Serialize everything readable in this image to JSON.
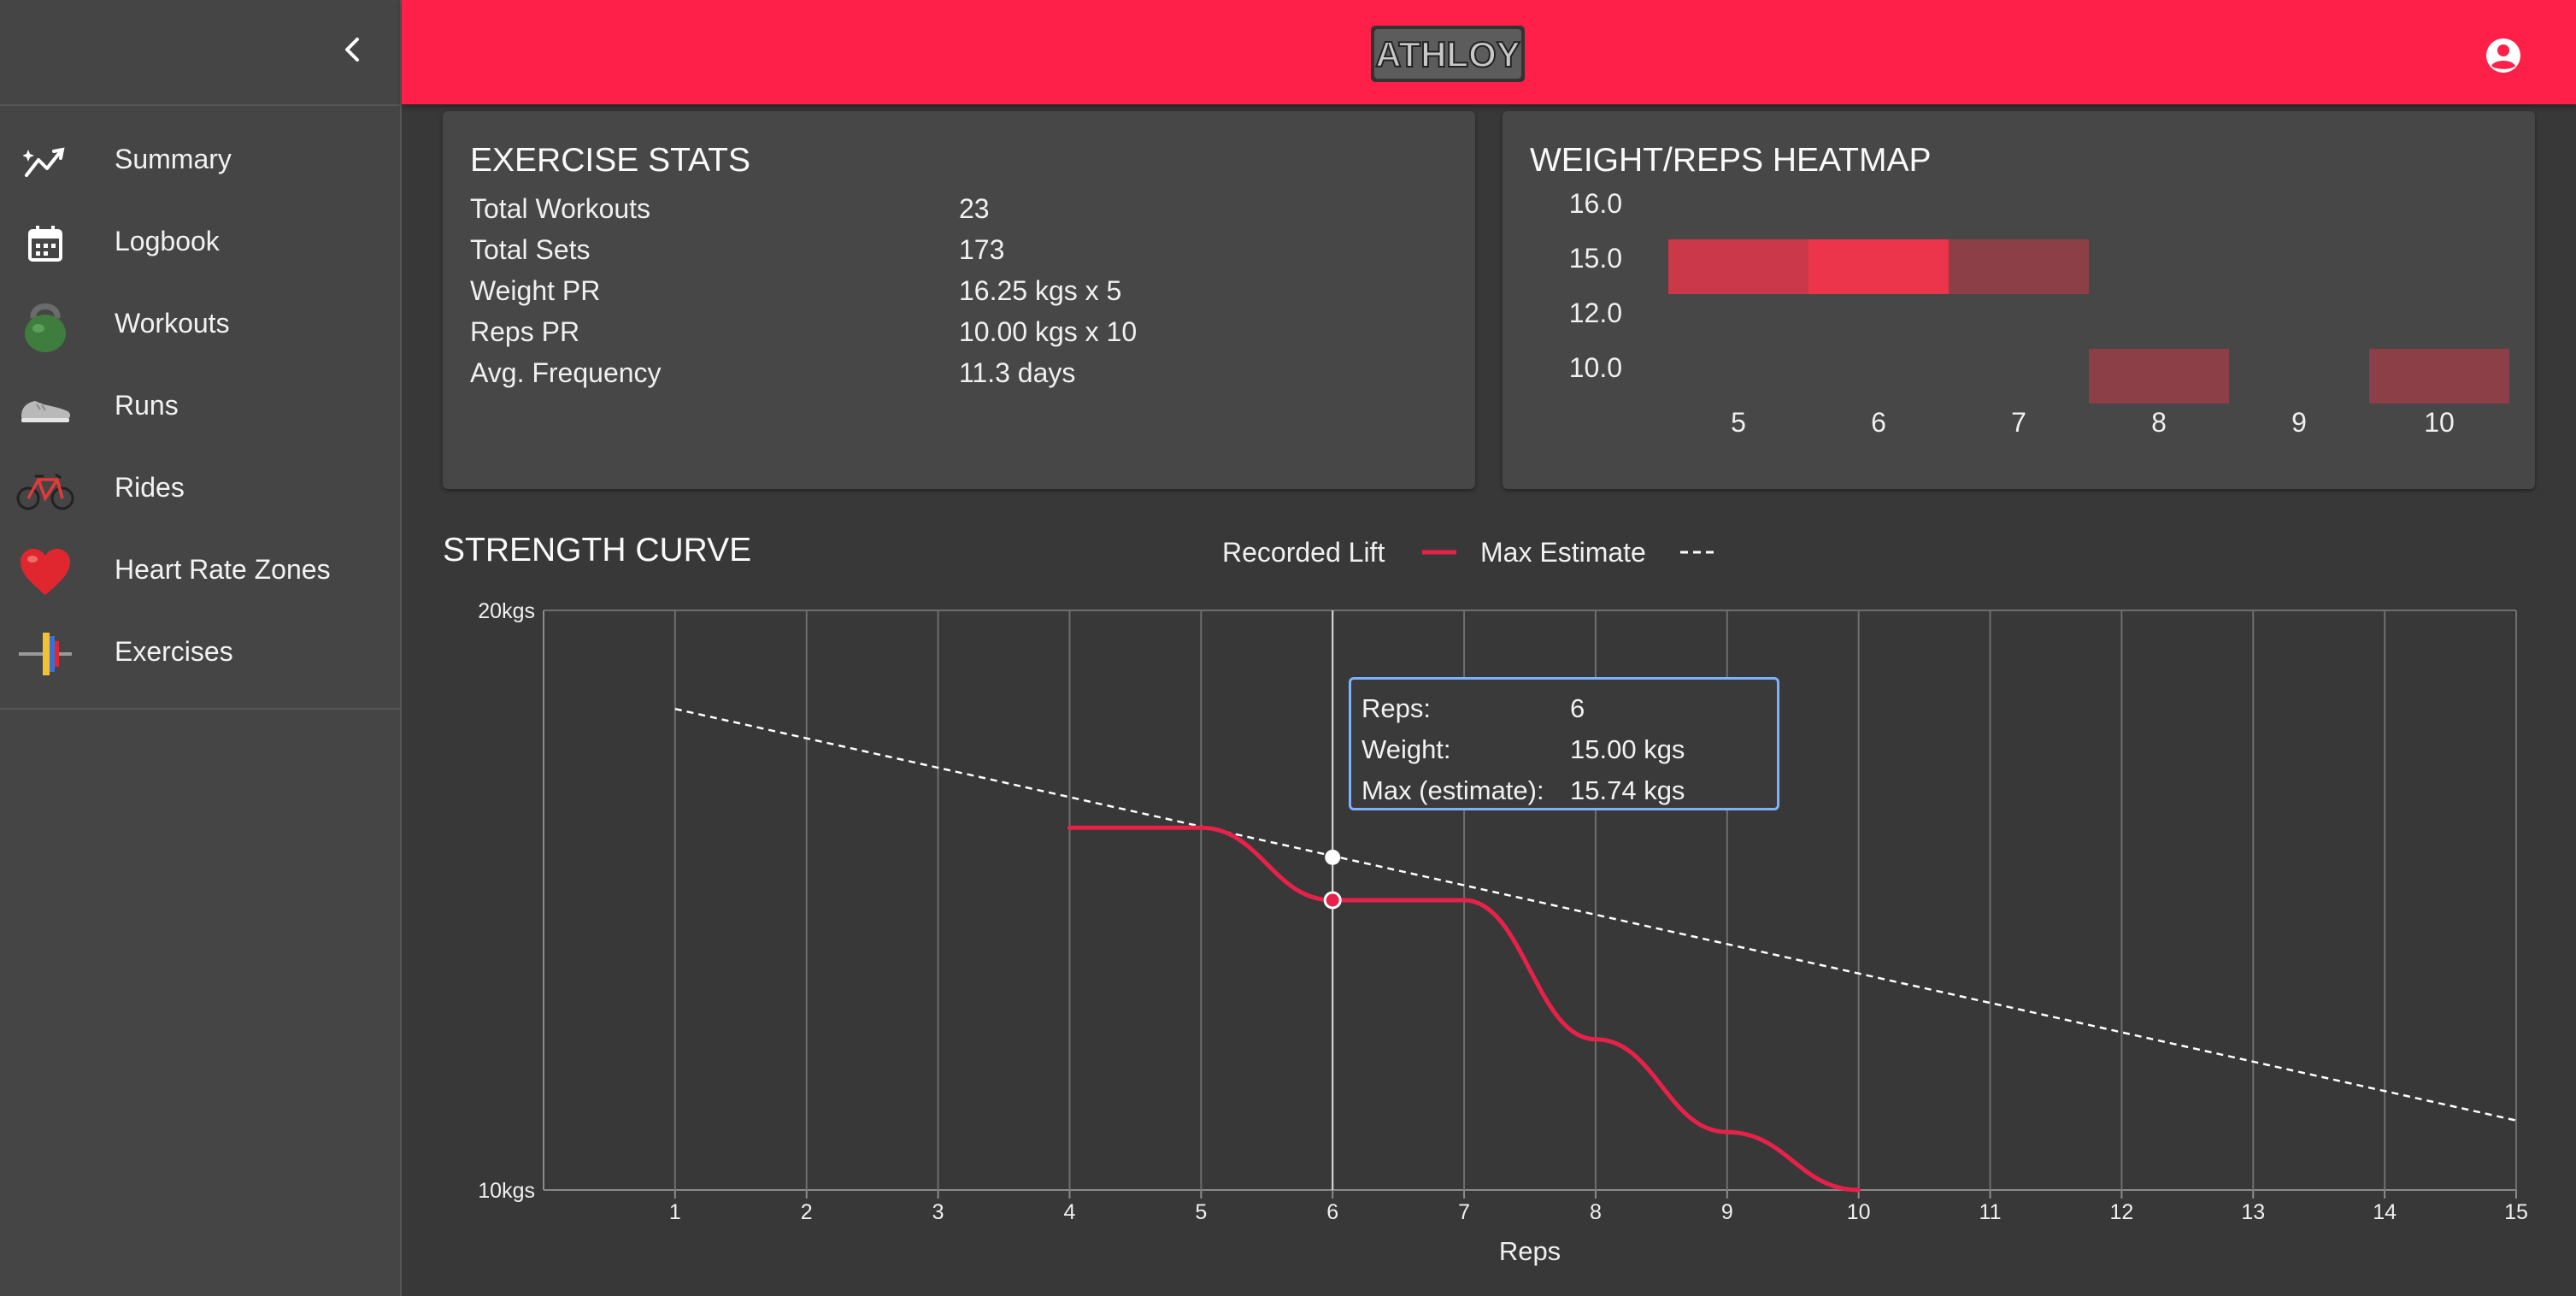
{
  "sidebar": {
    "collapse_icon": "chevron-left-icon",
    "items": [
      {
        "label": "Summary",
        "icon": "trending-up-icon"
      },
      {
        "label": "Logbook",
        "icon": "calendar-icon"
      },
      {
        "label": "Workouts",
        "icon": "kettlebell-icon"
      },
      {
        "label": "Runs",
        "icon": "sneaker-icon"
      },
      {
        "label": "Rides",
        "icon": "bicycle-icon"
      },
      {
        "label": "Heart Rate Zones",
        "icon": "heart-icon"
      },
      {
        "label": "Exercises",
        "icon": "barbell-icon"
      }
    ]
  },
  "header": {
    "logo_text": "ATHLOY",
    "account_icon": "account-circle-icon",
    "color": "#ff2049"
  },
  "exercise_stats": {
    "title": "EXERCISE STATS",
    "rows": [
      {
        "label": "Total Workouts",
        "value": "23"
      },
      {
        "label": "Total Sets",
        "value": "173"
      },
      {
        "label": "Weight PR",
        "value": "16.25 kgs x 5"
      },
      {
        "label": "Reps PR",
        "value": "10.00 kgs x 10"
      },
      {
        "label": "Avg. Frequency",
        "value": "11.3 days"
      }
    ]
  },
  "heatmap": {
    "title": "WEIGHT/REPS HEATMAP",
    "y_labels": [
      "16.0",
      "15.0",
      "12.0",
      "10.0"
    ],
    "x_labels": [
      "5",
      "6",
      "7",
      "8",
      "9",
      "10"
    ],
    "cells": [
      {
        "weight": "15.0",
        "reps": "5",
        "intensity": 0.75
      },
      {
        "weight": "15.0",
        "reps": "6",
        "intensity": 1.0
      },
      {
        "weight": "15.0",
        "reps": "7",
        "intensity": 0.3
      },
      {
        "weight": "10.0",
        "reps": "8",
        "intensity": 0.3
      },
      {
        "weight": "10.0",
        "reps": "10",
        "intensity": 0.3
      }
    ]
  },
  "strength_curve": {
    "title": "STRENGTH CURVE",
    "legend": [
      {
        "label": "Recorded Lift",
        "style": "solid",
        "color": "#e8214a"
      },
      {
        "label": "Max Estimate",
        "style": "dashed",
        "color": "#ffffff"
      }
    ],
    "tooltip": {
      "rows": [
        {
          "label": "Reps:",
          "value": "6"
        },
        {
          "label": "Weight:",
          "value": "15.00 kgs"
        },
        {
          "label": "Max (estimate):",
          "value": "15.74 kgs"
        }
      ]
    }
  },
  "chart_data": {
    "type": "line",
    "title": "STRENGTH CURVE",
    "xlabel": "Reps",
    "ylabel": "",
    "xlim": [
      0,
      15
    ],
    "ylim": [
      10,
      20
    ],
    "y_tick_labels": [
      "10kgs",
      "20kgs"
    ],
    "x_ticks": [
      1,
      2,
      3,
      4,
      5,
      6,
      7,
      8,
      9,
      10,
      11,
      12,
      13,
      14,
      15
    ],
    "grid": true,
    "legend_position": "top-center",
    "series": [
      {
        "name": "Recorded Lift",
        "color": "#e8214a",
        "x": [
          4,
          5,
          6,
          7,
          8,
          9,
          10
        ],
        "y": [
          16.25,
          16.25,
          15.0,
          15.0,
          12.6,
          11.0,
          10.0
        ]
      },
      {
        "name": "Max Estimate",
        "color": "#ffffff",
        "x": [
          1,
          15
        ],
        "y": [
          18.3,
          11.2
        ]
      }
    ],
    "highlight": {
      "x": 6,
      "recorded": 15.0,
      "estimate": 15.74
    }
  }
}
